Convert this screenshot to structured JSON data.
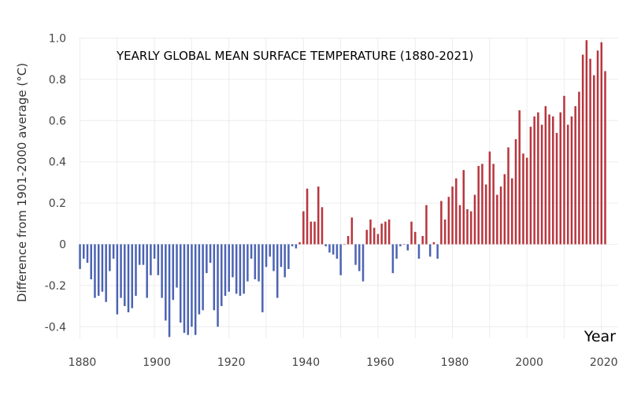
{
  "chart_data": {
    "type": "bar",
    "title": "YEARLY GLOBAL MEAN SURFACE TEMPERATURE (1880-2021)",
    "xlabel": "Year",
    "ylabel": "Difference from 1901-2000 average (°C)",
    "xlim": [
      1880,
      2021
    ],
    "ylim": [
      -0.5,
      1.0
    ],
    "grid": true,
    "legend": "none",
    "x_ticks": [
      "1880",
      "1900",
      "1920",
      "1940",
      "1960",
      "1980",
      "2000",
      "2020"
    ],
    "y_ticks": [
      "1.0",
      "0.8",
      "0.6",
      "0.4",
      "0.2",
      "0",
      "-0.2",
      "-0.4"
    ],
    "colors": {
      "positive": "#b8353d",
      "negative": "#4b63b3"
    },
    "start_year": 1880,
    "values": [
      -0.12,
      -0.07,
      -0.09,
      -0.17,
      -0.26,
      -0.25,
      -0.23,
      -0.28,
      -0.13,
      -0.07,
      -0.34,
      -0.26,
      -0.3,
      -0.33,
      -0.31,
      -0.25,
      -0.1,
      -0.1,
      -0.26,
      -0.15,
      -0.07,
      -0.15,
      -0.26,
      -0.37,
      -0.45,
      -0.27,
      -0.21,
      -0.38,
      -0.43,
      -0.44,
      -0.4,
      -0.44,
      -0.34,
      -0.32,
      -0.14,
      -0.09,
      -0.32,
      -0.4,
      -0.3,
      -0.25,
      -0.23,
      -0.16,
      -0.24,
      -0.25,
      -0.24,
      -0.18,
      -0.07,
      -0.17,
      -0.18,
      -0.33,
      -0.11,
      -0.06,
      -0.13,
      -0.26,
      -0.11,
      -0.16,
      -0.12,
      -0.01,
      -0.02,
      0.01,
      0.16,
      0.27,
      0.11,
      0.11,
      0.28,
      0.18,
      -0.01,
      -0.04,
      -0.05,
      -0.07,
      -0.15,
      0.0,
      0.04,
      0.13,
      -0.1,
      -0.13,
      -0.18,
      0.07,
      0.12,
      0.08,
      0.05,
      0.1,
      0.11,
      0.12,
      -0.14,
      -0.07,
      -0.01,
      0.0,
      -0.03,
      0.11,
      0.06,
      -0.07,
      0.04,
      0.19,
      -0.06,
      0.01,
      -0.07,
      0.21,
      0.12,
      0.23,
      0.28,
      0.32,
      0.19,
      0.36,
      0.17,
      0.16,
      0.24,
      0.38,
      0.39,
      0.29,
      0.45,
      0.39,
      0.24,
      0.28,
      0.34,
      0.47,
      0.32,
      0.51,
      0.65,
      0.44,
      0.42,
      0.57,
      0.62,
      0.64,
      0.58,
      0.67,
      0.63,
      0.62,
      0.54,
      0.64,
      0.72,
      0.58,
      0.62,
      0.67,
      0.74,
      0.92,
      0.99,
      0.9,
      0.82,
      0.94,
      0.98,
      0.84
    ]
  }
}
